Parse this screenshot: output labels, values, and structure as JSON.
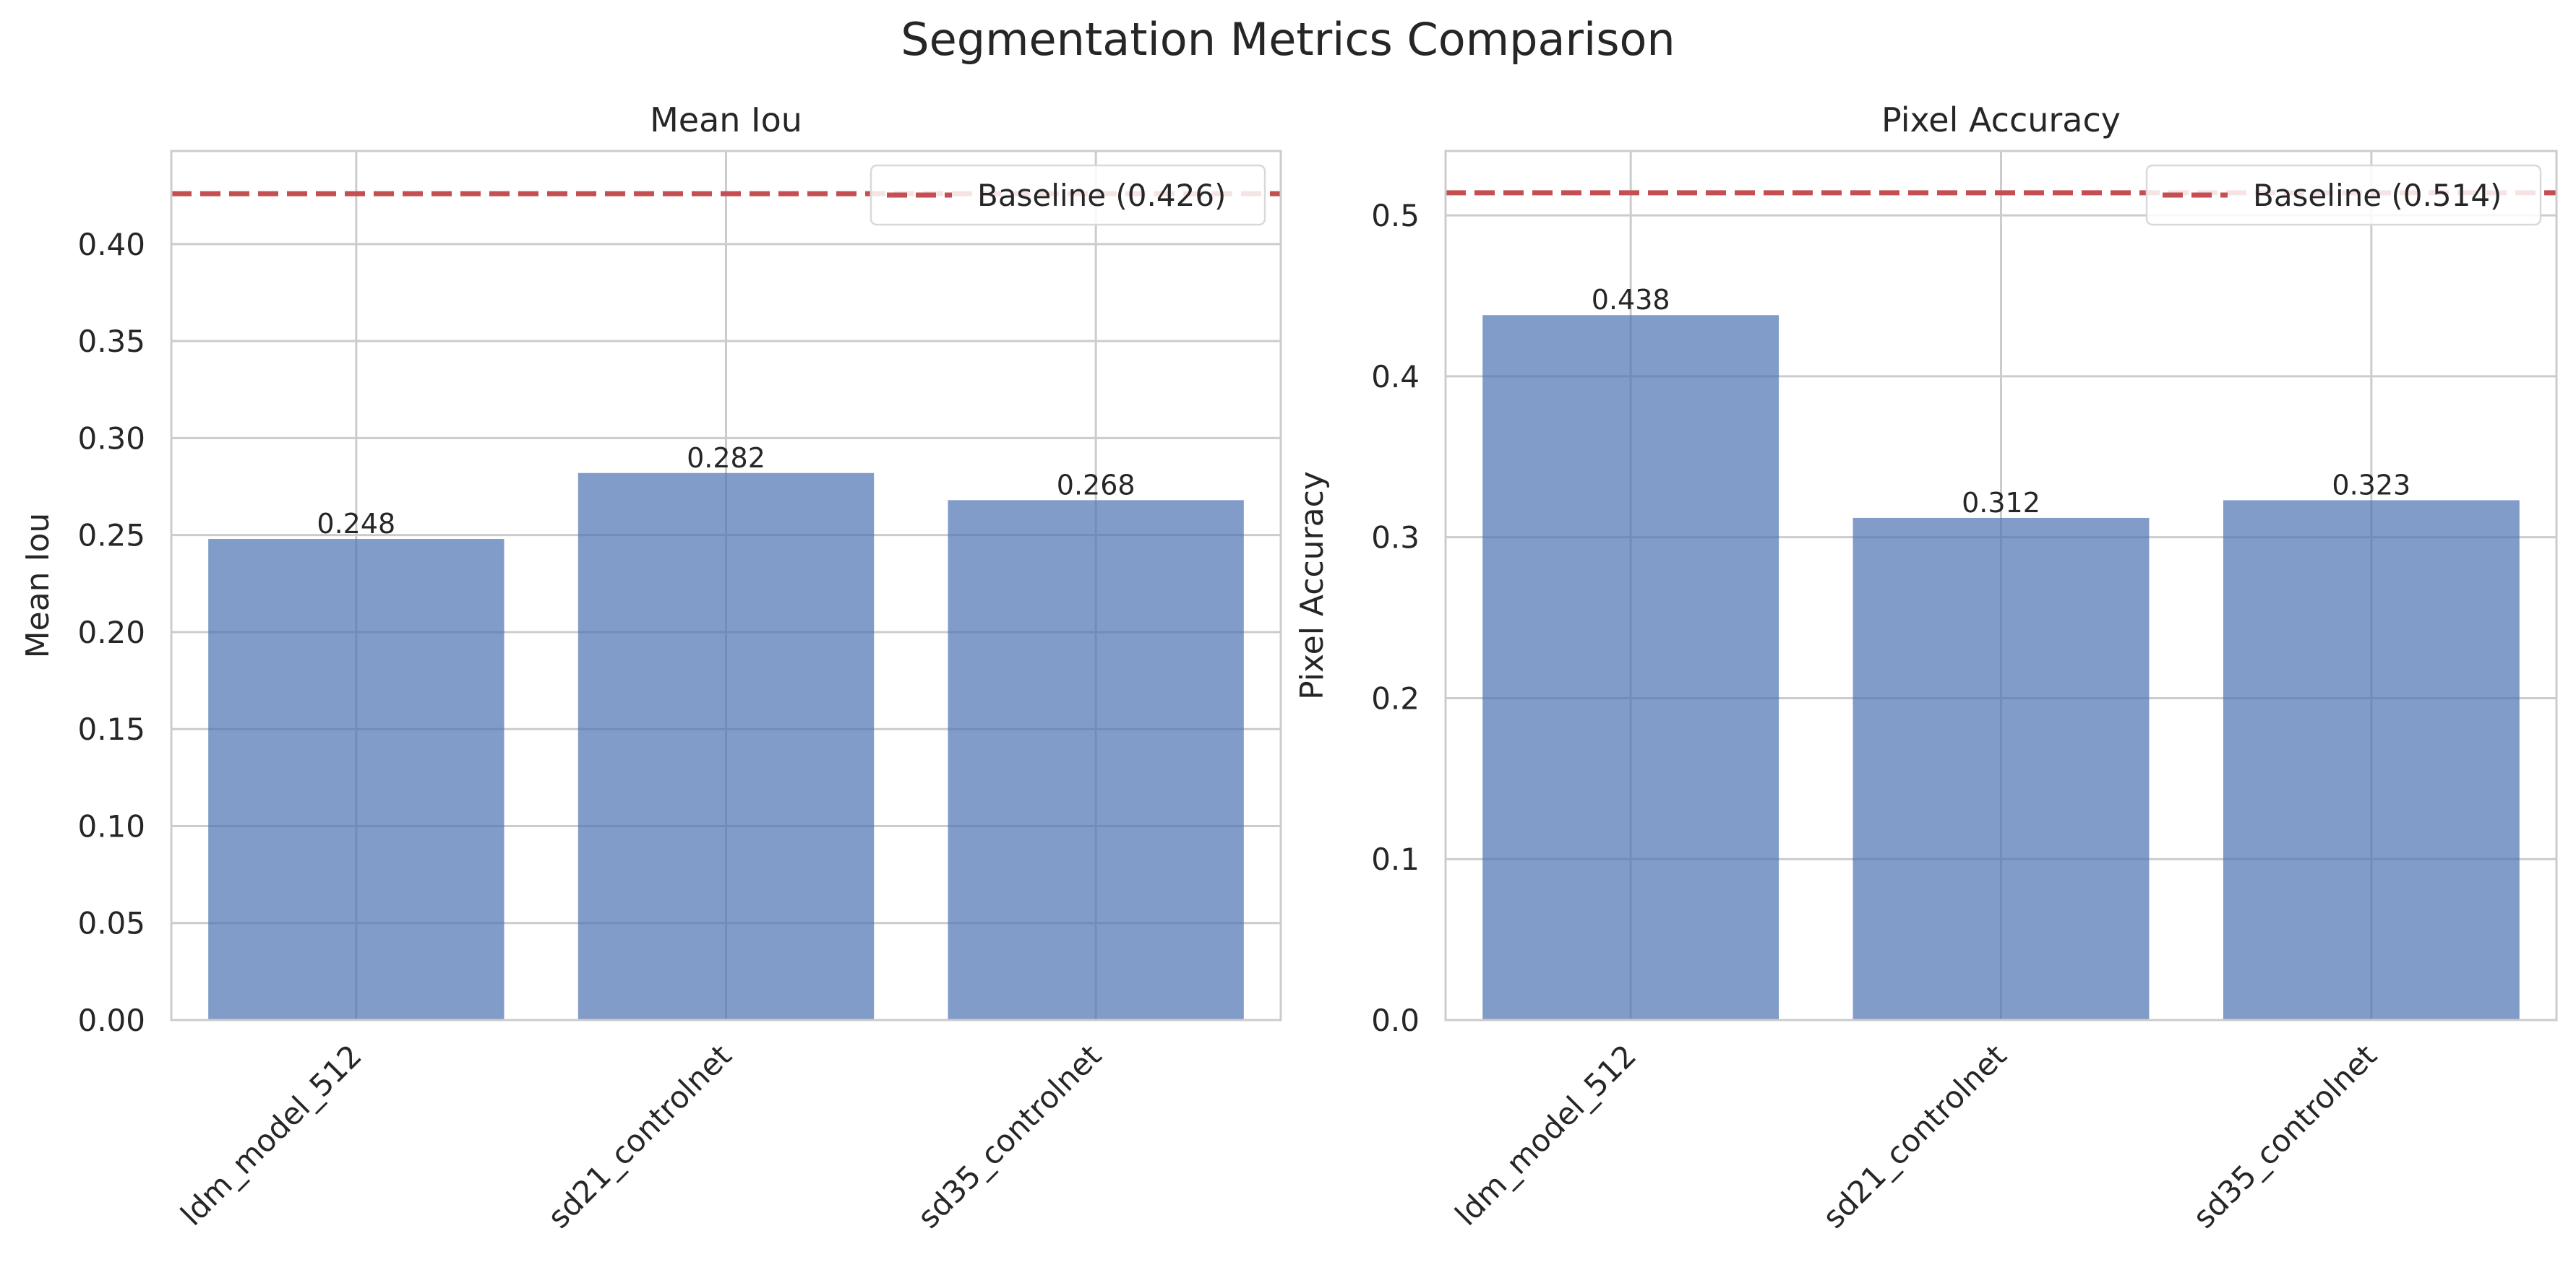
{
  "suptitle": "Segmentation Metrics Comparison",
  "colors": {
    "bar": "#4c72b0",
    "baseline": "#c44e52",
    "grid": "#cccccc"
  },
  "chart_data": [
    {
      "type": "bar",
      "title": "Mean Iou",
      "xlabel": "",
      "ylabel": "Mean Iou",
      "categories": [
        "ldm_model_512",
        "sd21_controlnet",
        "sd35_controlnet"
      ],
      "values": [
        0.248,
        0.282,
        0.268
      ],
      "value_labels": [
        "0.248",
        "0.282",
        "0.268"
      ],
      "ylim": [
        0,
        0.448
      ],
      "yticks": [
        0.0,
        0.05,
        0.1,
        0.15,
        0.2,
        0.25,
        0.3,
        0.35,
        0.4
      ],
      "ytick_labels": [
        "0.00",
        "0.05",
        "0.10",
        "0.15",
        "0.20",
        "0.25",
        "0.30",
        "0.35",
        "0.40"
      ],
      "baseline": {
        "value": 0.426,
        "label": "Baseline (0.426)"
      },
      "legend_position": "top-right",
      "grid": true,
      "xtick_rotation_deg": 45
    },
    {
      "type": "bar",
      "title": "Pixel Accuracy",
      "xlabel": "",
      "ylabel": "Pixel Accuracy",
      "categories": [
        "ldm_model_512",
        "sd21_controlnet",
        "sd35_controlnet"
      ],
      "values": [
        0.438,
        0.312,
        0.323
      ],
      "value_labels": [
        "0.438",
        "0.312",
        "0.323"
      ],
      "ylim": [
        0,
        0.54
      ],
      "yticks": [
        0.0,
        0.1,
        0.2,
        0.3,
        0.4,
        0.5
      ],
      "ytick_labels": [
        "0.0",
        "0.1",
        "0.2",
        "0.3",
        "0.4",
        "0.5"
      ],
      "baseline": {
        "value": 0.514,
        "label": "Baseline (0.514)"
      },
      "legend_position": "top-right",
      "grid": true,
      "xtick_rotation_deg": 45
    }
  ]
}
